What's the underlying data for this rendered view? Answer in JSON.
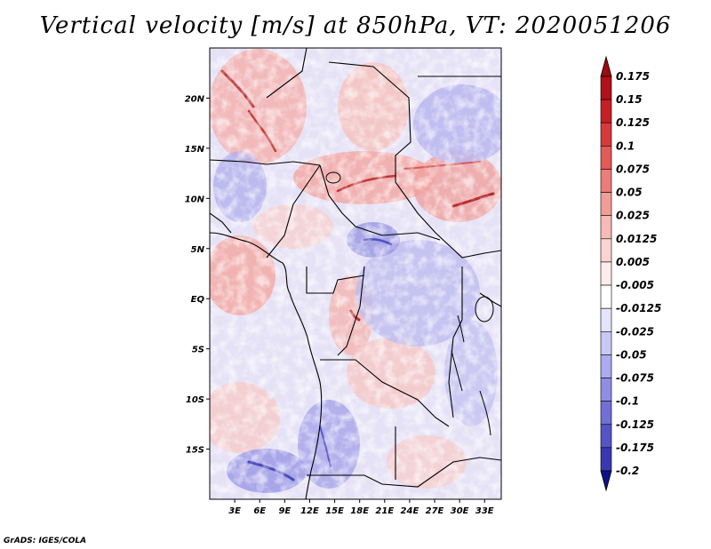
{
  "title": "Vertical velocity [m/s] at 850hPa, VT: 2020051206",
  "credit": "GrADS: IGES/COLA",
  "map": {
    "lon_range": [
      0,
      35
    ],
    "lat_range": [
      -20,
      25
    ],
    "x_ticks": [
      {
        "value": 3,
        "label": "3E"
      },
      {
        "value": 6,
        "label": "6E"
      },
      {
        "value": 9,
        "label": "9E"
      },
      {
        "value": 12,
        "label": "12E"
      },
      {
        "value": 15,
        "label": "15E"
      },
      {
        "value": 18,
        "label": "18E"
      },
      {
        "value": 21,
        "label": "21E"
      },
      {
        "value": 24,
        "label": "24E"
      },
      {
        "value": 27,
        "label": "27E"
      },
      {
        "value": 30,
        "label": "30E"
      },
      {
        "value": 33,
        "label": "33E"
      }
    ],
    "y_ticks": [
      {
        "value": 20,
        "label": "20N"
      },
      {
        "value": 15,
        "label": "15N"
      },
      {
        "value": 10,
        "label": "10N"
      },
      {
        "value": 5,
        "label": "5N"
      },
      {
        "value": 0,
        "label": "EQ"
      },
      {
        "value": -5,
        "label": "5S"
      },
      {
        "value": -10,
        "label": "10S"
      },
      {
        "value": -15,
        "label": "15S"
      }
    ]
  },
  "colorbar": {
    "levels": [
      {
        "label": "0.175",
        "color": "#b01018"
      },
      {
        "label": "0.15",
        "color": "#c42026"
      },
      {
        "label": "0.125",
        "color": "#d63a3a"
      },
      {
        "label": "0.1",
        "color": "#e35a56"
      },
      {
        "label": "0.075",
        "color": "#ec7c78"
      },
      {
        "label": "0.05",
        "color": "#f29c98"
      },
      {
        "label": "0.025",
        "color": "#f7bab6"
      },
      {
        "label": "0.0125",
        "color": "#fad4d1"
      },
      {
        "label": "0.005",
        "color": "#fdeceb"
      },
      {
        "label": "-0.005",
        "color": "#ffffff"
      },
      {
        "label": "-0.0125",
        "color": "#e4e4fb"
      },
      {
        "label": "-0.025",
        "color": "#c8c8f5"
      },
      {
        "label": "-0.05",
        "color": "#ababee"
      },
      {
        "label": "-0.075",
        "color": "#8e8ee4"
      },
      {
        "label": "-0.1",
        "color": "#7070d6"
      },
      {
        "label": "-0.125",
        "color": "#5454c6"
      },
      {
        "label": "-0.175",
        "color": "#3838b0"
      },
      {
        "label": "-0.2",
        "color": "#1c1c98"
      }
    ],
    "top_color": "#9a0c12",
    "bottom_color": "#10108a"
  }
}
